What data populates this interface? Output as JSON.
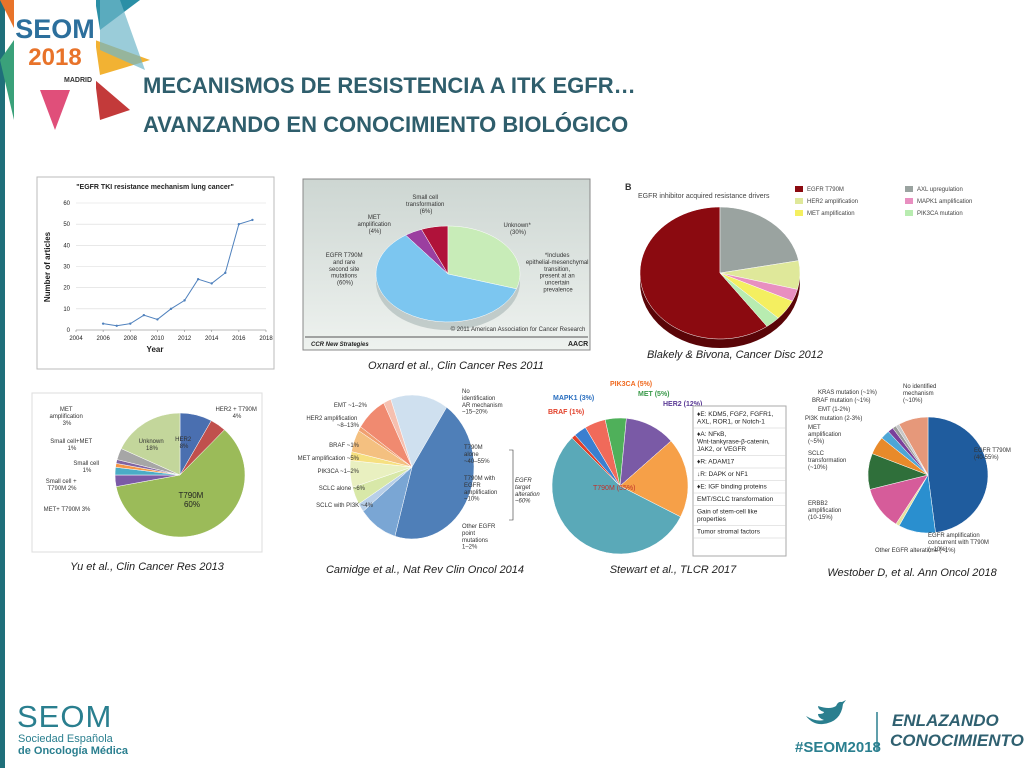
{
  "header": {
    "title_line1": "MECANISMOS DE RESISTENCIA A ITK EGFR…",
    "title_line2": "AVANZANDO EN CONOCIMIENTO BIOLÓGICO"
  },
  "logo": {
    "brand": "SEOM",
    "year": "2018",
    "city": "MADRID"
  },
  "chart_data": {
    "type": "line",
    "title": "\"EGFR TKI resistance mechanism lung cancer\"",
    "x_label": "Year",
    "y_label": "Number of articles",
    "x": [
      2006,
      2007,
      2008,
      2009,
      2010,
      2011,
      2012,
      2013,
      2014,
      2015,
      2016,
      2017
    ],
    "values": [
      3,
      2,
      3,
      7,
      5,
      10,
      14,
      24,
      22,
      27,
      50,
      52
    ],
    "color": "#4f81bd",
    "xlim": [
      2004,
      2018
    ],
    "xticks": [
      2004,
      2006,
      2008,
      2010,
      2012,
      2014,
      2016,
      2018
    ],
    "ylim": [
      0,
      60
    ],
    "yticks": [
      0,
      10,
      20,
      30,
      40,
      50,
      60
    ],
    "grid": true
  },
  "figures": [
    {
      "caption": "Oxnard et al., Clin Cancer Res 2011",
      "labels": [
        "Small cell transformation (6%)",
        "MET amplification (4%)",
        "EGFR T790M and rare second site mutations (60%)",
        "Unknown* (30%)",
        "*Includes epithelial-mesenchymal transition, present at an uncertain prevalence",
        "© 2011 American Association for Cancer Research",
        "CCR New Strategies",
        "AACR"
      ],
      "pie": {
        "values": [
          4,
          6,
          30,
          60
        ],
        "colors": [
          "#9b3fa0",
          "#b0123a",
          "#c8ecb8",
          "#7cc6f0"
        ]
      }
    },
    {
      "caption": "Blakely & Bivona, Cancer Disc 2012",
      "labels": [
        "B",
        "EGFR inhibitor acquired resistance drivers"
      ],
      "legend": [
        "EGFR T790M",
        "AXL upregulation",
        "HER2 amplification",
        "MAPK1 amplification",
        "MET amplification",
        "PIK3CA mutation"
      ],
      "pie": {
        "values": [
          60,
          22,
          7,
          3,
          5,
          3
        ],
        "colors": [
          "#8b0a10",
          "#9aa3a0",
          "#dfe89a",
          "#e88fc0",
          "#f4ef60",
          "#b8ecb0"
        ]
      }
    },
    {
      "caption": "Yu et al., Clin Cancer Res 2013",
      "labels": [
        "HER2 8%",
        "HER2 + T790M 4%",
        "MET amplification 3%",
        "Small cell+MET 1%",
        "Small cell 1%",
        "Small cell + T790M 2%",
        "MET+ T790M 3%",
        "Unknown 18%",
        "T790M 60%"
      ],
      "pie": {
        "values": [
          8,
          4,
          60,
          3,
          2,
          1,
          1,
          3,
          18
        ],
        "colors": [
          "#4a6fb0",
          "#c0504d",
          "#9bbb59",
          "#7b5aa6",
          "#4bacc6",
          "#f79646",
          "#8064a2",
          "#a6a6a6",
          "#c3d69b"
        ]
      }
    },
    {
      "caption": "Camidge et al., Nat Rev Clin Oncol 2014",
      "labels": [
        "EMT ~1–2%",
        "HER2 amplification ~8–13%",
        "BRAF ~1%",
        "MET amplification ~5%",
        "PIK3CA ~1–2%",
        "SCLC alone ~6%",
        "SCLC with PI3K ~4%",
        "No identification AR mechanism ~15–20%",
        "T790M alone ~40–55%",
        "T790M with EGFR amplification ~10%",
        "Other EGFR point mutations 1–2%",
        "EGFR target alteration ~60%"
      ],
      "pie": {
        "values": [
          15,
          45,
          10,
          2,
          4,
          6,
          2,
          5,
          1,
          8,
          2
        ],
        "colors": [
          "#cfe0ef",
          "#4f7fb8",
          "#7aa6d4",
          "#b8cfe8",
          "#d8e8a8",
          "#e9f0c0",
          "#f6e080",
          "#f4c080",
          "#f0a070",
          "#f08a70",
          "#f6c0b0"
        ]
      }
    },
    {
      "caption": "Stewart et al., TLCR 2017",
      "labels": [
        "PIK3CA (5%)",
        "MET (5%)",
        "MAPK1 (3%)",
        "HER2 (12%)",
        "BRAF (1%)",
        "T790M (55%)"
      ],
      "list": [
        "♦E: KDM5, FGF2, FGFR1, AXL, ROR1, or Notch-1",
        "♦A: NFκB, Wnt-tankyrase-β-catenin, JAK2, or VEGFR",
        "♦R: ADAM17",
        "↓R: DAPK or NF1",
        "♦E: IGF binding proteins",
        "EMT/SCLC transformation",
        "Gain of stem-cell like properties",
        "Tumor stromal factors"
      ],
      "pie": {
        "values": [
          1,
          3,
          5,
          5,
          12,
          19,
          55
        ],
        "colors": [
          "#e2402a",
          "#3a7fd0",
          "#f06a5a",
          "#4fb05a",
          "#7a5aa6",
          "#f6a048",
          "#5aa9b8"
        ]
      }
    },
    {
      "caption": "Westober D, et al. Ann Oncol 2018",
      "labels": [
        "KRAS mutation (~1%)",
        "BRAF mutation (~1%)",
        "EMT (1-2%)",
        "PI3K mutation (2-3%)",
        "MET amplification (~5%)",
        "SCLC transformation (~10%)",
        "ERBB2 amplification (10-15%)",
        "No identified mechanism (~10%)",
        "EGFR T790M (40-55%)",
        "EGFR amplification concurrent with T790M (~10%)",
        "Other EGFR alterations (~1%)"
      ],
      "pie": {
        "values": [
          48,
          10,
          1,
          12,
          10,
          5,
          2.5,
          1.5,
          1,
          1,
          8
        ],
        "colors": [
          "#1f5c9e",
          "#2a8fcf",
          "#e6e0a0",
          "#d65c9a",
          "#2f6f3a",
          "#e88a2a",
          "#4ea6d6",
          "#7a3f9a",
          "#9a9a9a",
          "#c8c8c8",
          "#e6987a"
        ]
      }
    }
  ],
  "footer": {
    "brand": "SEOM",
    "org_line1": "Sociedad Española",
    "org_line2": "de Oncología Médica",
    "hashtag": "#SEOM2018",
    "slogan_line1": "ENLAZANDO",
    "slogan_line2": "CONOCIMIENTO"
  }
}
